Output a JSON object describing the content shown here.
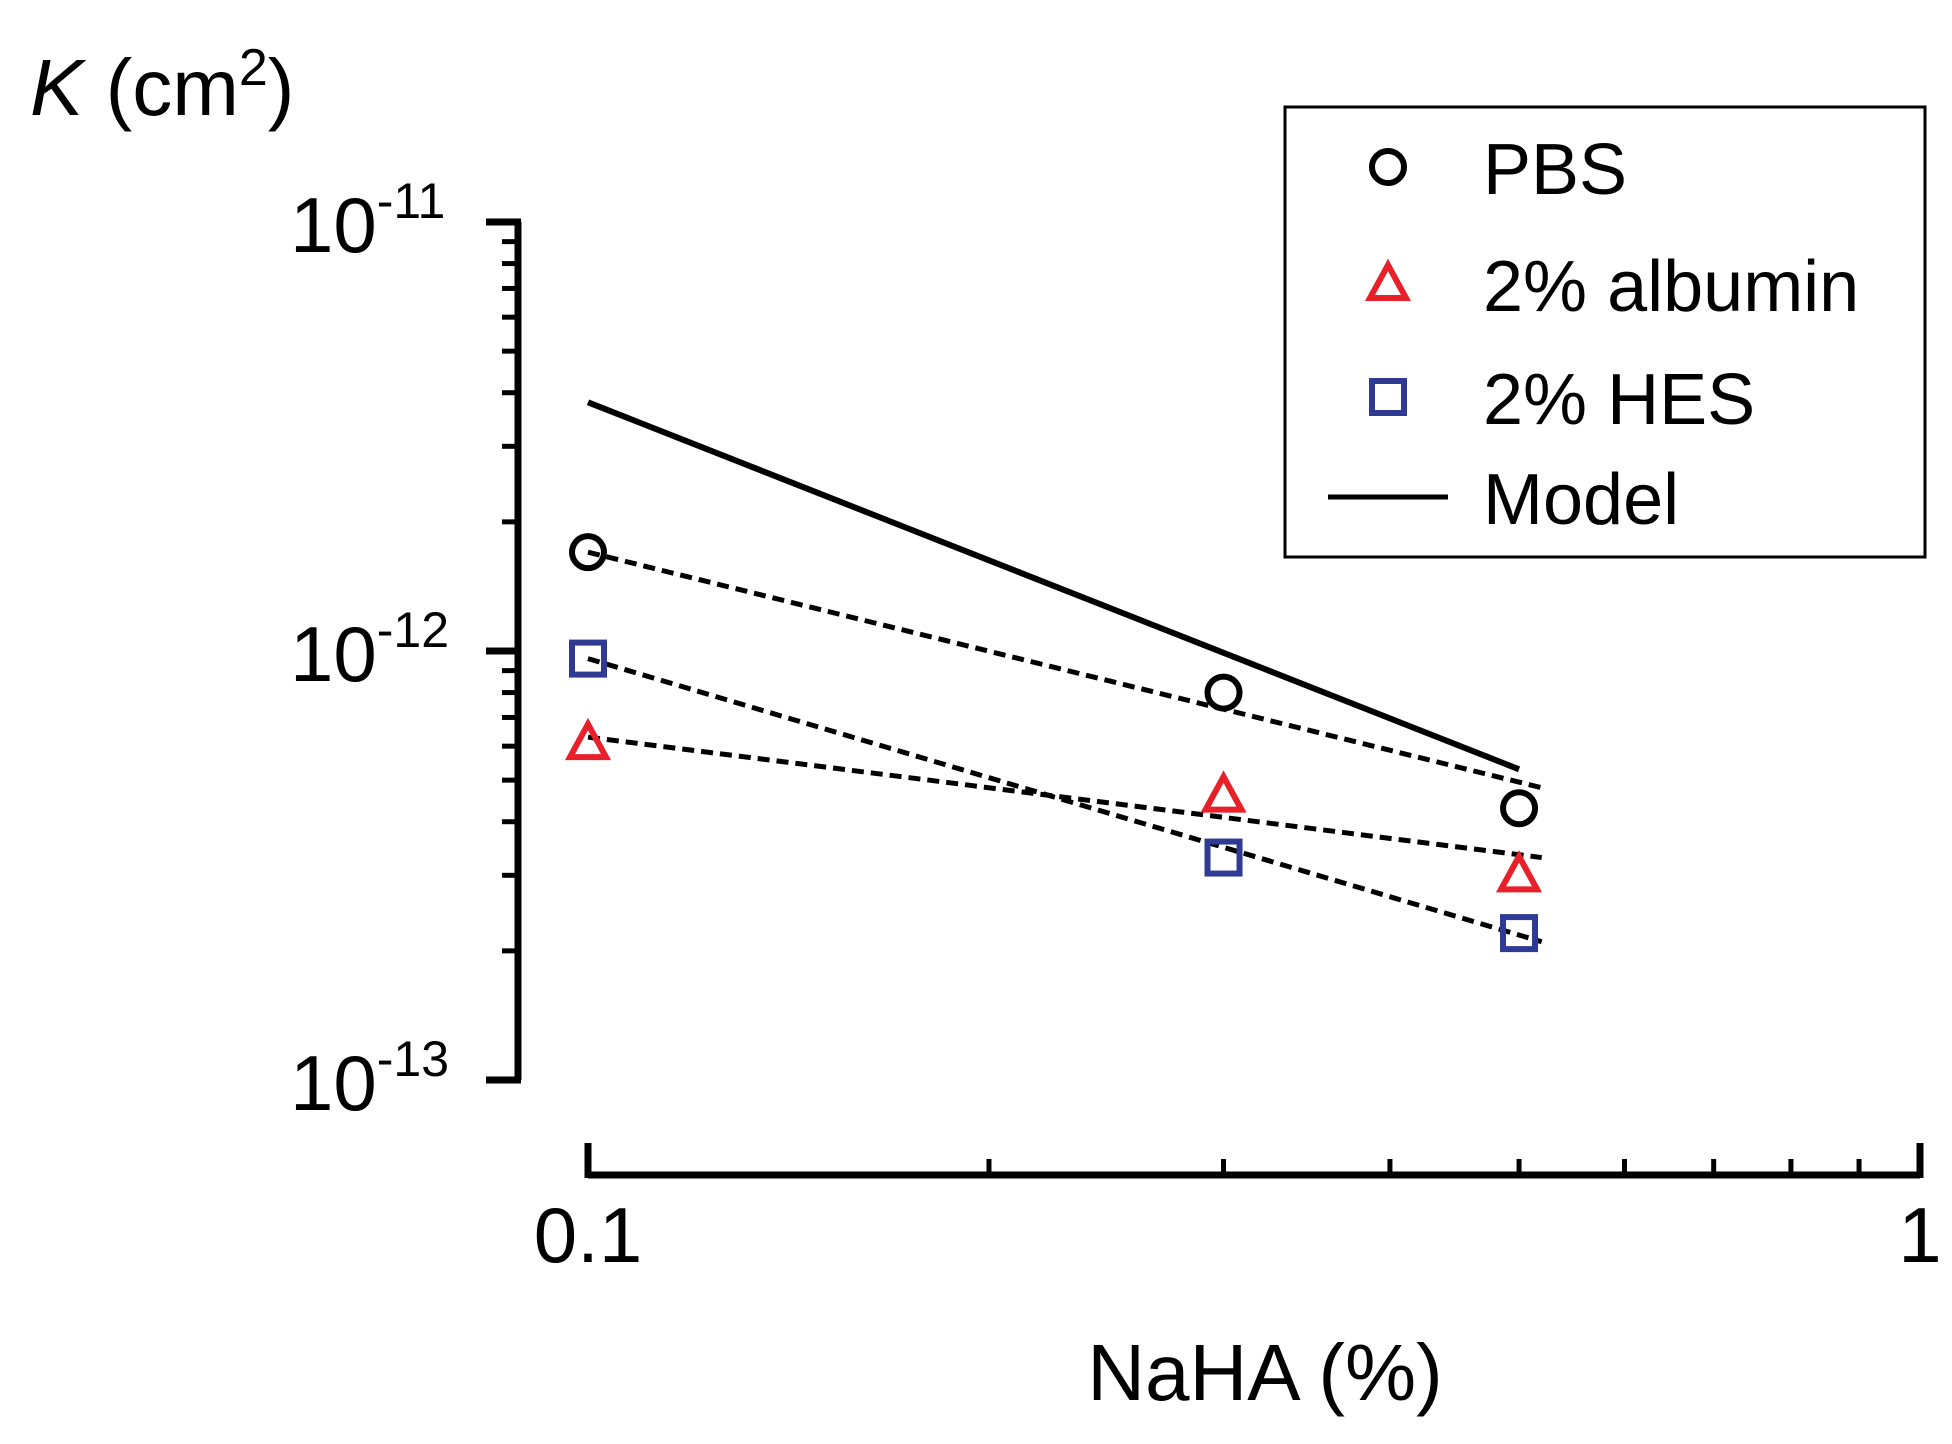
{
  "chart_data": {
    "type": "scatter",
    "title": "",
    "ylabel_symbol": "K",
    "ylabel_unit": "(cm",
    "ylabel_exp": "2",
    "ylabel_close": ")",
    "xlabel": "NaHA (%)",
    "xscale": "log",
    "yscale": "log",
    "xlim": [
      0.1,
      1
    ],
    "ylim": [
      1e-13,
      1e-11
    ],
    "x_ticks": [
      {
        "value": 0.1,
        "label": "0.1"
      },
      {
        "value": 1,
        "label": "1"
      }
    ],
    "y_ticks": [
      {
        "value": 1e-11,
        "base": "10",
        "exp": "-11"
      },
      {
        "value": 1e-12,
        "base": "10",
        "exp": "-12"
      },
      {
        "value": 1e-13,
        "base": "10",
        "exp": "-13"
      }
    ],
    "legend_position": "top-right",
    "series": [
      {
        "name": "PBS",
        "marker": "circle",
        "color": "#000000",
        "x": [
          0.1,
          0.3,
          0.5
        ],
        "y": [
          1.7e-12,
          8e-13,
          4.3e-13
        ],
        "fit": {
          "x": [
            0.1,
            0.52
          ],
          "y": [
            1.7e-12,
            4.8e-13
          ]
        }
      },
      {
        "name": "2% albumin",
        "marker": "triangle",
        "color": "#e8202a",
        "x": [
          0.1,
          0.3,
          0.5
        ],
        "y": [
          6.1e-13,
          4.6e-13,
          3e-13
        ],
        "fit": {
          "x": [
            0.1,
            0.52
          ],
          "y": [
            6.3e-13,
            3.3e-13
          ]
        }
      },
      {
        "name": "2% HES",
        "marker": "square",
        "color": "#2e3a93",
        "x": [
          0.1,
          0.3,
          0.5
        ],
        "y": [
          9.6e-13,
          3.3e-13,
          2.2e-13
        ],
        "fit": {
          "x": [
            0.1,
            0.52
          ],
          "y": [
            9.6e-13,
            2.1e-13
          ]
        }
      },
      {
        "name": "Model",
        "marker": "line",
        "color": "#000000",
        "x": [
          0.1,
          0.5
        ],
        "y": [
          3.8e-12,
          5.3e-13
        ]
      }
    ]
  }
}
